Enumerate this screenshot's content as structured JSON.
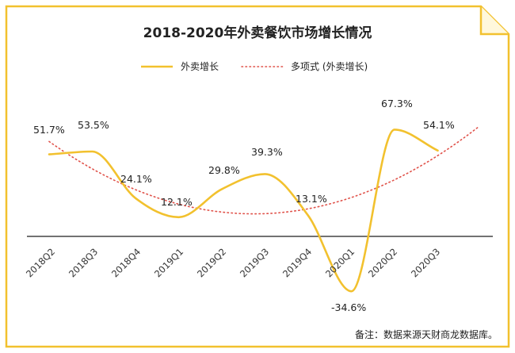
{
  "chart_data": {
    "type": "line",
    "title": "2018-2020年外卖餐饮市场增长情况",
    "categories": [
      "2018Q2",
      "2018Q3",
      "2018Q4",
      "2019Q1",
      "2019Q2",
      "2019Q3",
      "2019Q4",
      "2020Q1",
      "2020Q2",
      "2020Q3"
    ],
    "series": [
      {
        "name": "外卖增长",
        "values": [
          51.7,
          53.5,
          24.1,
          12.1,
          29.8,
          39.3,
          13.1,
          -34.6,
          67.3,
          54.1
        ],
        "labels": [
          "51.7%",
          "53.5%",
          "24.1%",
          "12.1%",
          "29.8%",
          "39.3%",
          "13.1%",
          "-34.6%",
          "67.3%",
          "54.1%"
        ],
        "color": "#f2c12e",
        "style": "smooth-solid"
      },
      {
        "name": "多项式 (外卖增长)",
        "trend": "polynomial",
        "color": "#e0524a",
        "style": "dotted"
      }
    ],
    "xlabel": "",
    "ylabel": "",
    "ylim": [
      -40,
      80
    ],
    "grid": false,
    "legend": "top-center",
    "note": "备注：数据来源天财商龙数据库。"
  },
  "colors": {
    "frame": "#f2c12e",
    "baseline": "#444444"
  }
}
